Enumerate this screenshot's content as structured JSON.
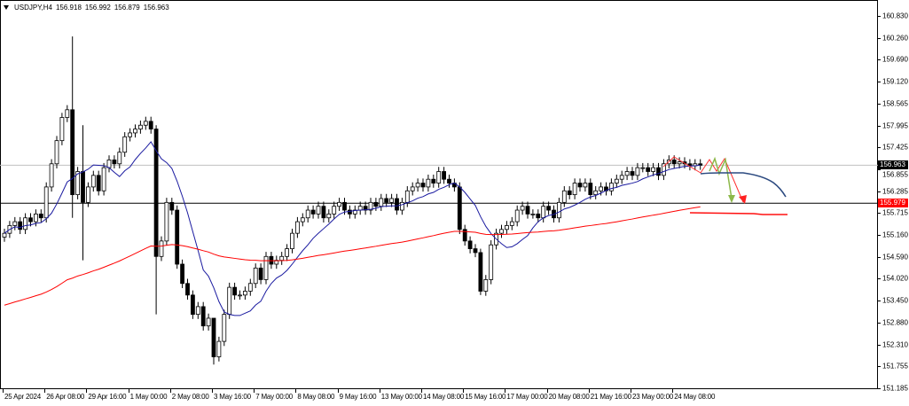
{
  "header": {
    "symbol": "USDJPY,H4",
    "open": "156.918",
    "high": "156.992",
    "low": "156.879",
    "close": "156.963"
  },
  "price_axis": {
    "labels": [
      "160.830",
      "160.260",
      "159.690",
      "159.120",
      "158.565",
      "157.995",
      "157.425",
      "156.855",
      "156.285",
      "155.715",
      "155.160",
      "154.590",
      "154.020",
      "153.450",
      "152.880",
      "152.310",
      "151.755",
      "151.185"
    ],
    "range": [
      151.185,
      160.83
    ]
  },
  "bid_line": {
    "price": 156.963,
    "label": "156.963",
    "color": "#000000"
  },
  "level_line": {
    "price": 155.979,
    "label": "155.979",
    "color": "#ff0000"
  },
  "time_axis": {
    "labels": [
      "25 Apr 2024",
      "26 Apr 08:00",
      "29 Apr 16:00",
      "1 May 00:00",
      "2 May 08:00",
      "3 May 16:00",
      "7 May 00:00",
      "8 May 08:00",
      "9 May 16:00",
      "13 May 00:00",
      "14 May 08:00",
      "15 May 16:00",
      "17 May 00:00",
      "20 May 08:00",
      "21 May 16:00",
      "23 May 00:00",
      "24 May 08:00"
    ],
    "bars_per_label": 8
  },
  "chart_data": {
    "type": "candlestick",
    "timeframe": "H4",
    "first_open": 155.1,
    "closes": [
      155.2,
      155.4,
      155.5,
      155.3,
      155.6,
      155.5,
      155.7,
      155.6,
      156.4,
      157.0,
      157.6,
      158.2,
      158.4,
      156.2,
      156.8,
      156.0,
      156.4,
      156.7,
      156.3,
      156.9,
      157.1,
      157.0,
      157.3,
      157.7,
      157.8,
      157.9,
      158.0,
      158.1,
      157.9,
      154.6,
      155.0,
      156.0,
      155.8,
      154.4,
      153.9,
      153.6,
      153.1,
      153.3,
      152.8,
      153.0,
      152.0,
      152.4,
      153.1,
      153.8,
      153.6,
      153.6,
      153.7,
      153.9,
      154.3,
      154.0,
      154.6,
      154.4,
      154.5,
      154.6,
      154.8,
      155.2,
      155.5,
      155.6,
      155.8,
      155.7,
      155.9,
      155.6,
      155.7,
      155.9,
      156.0,
      155.8,
      155.7,
      155.8,
      155.9,
      155.8,
      156.0,
      155.9,
      156.1,
      156.0,
      156.1,
      155.8,
      156.0,
      156.3,
      156.4,
      156.5,
      156.4,
      156.6,
      156.5,
      156.8,
      156.6,
      156.5,
      156.4,
      155.3,
      155.0,
      154.8,
      154.7,
      153.7,
      154.0,
      154.9,
      155.2,
      155.3,
      155.4,
      155.5,
      155.8,
      155.9,
      155.7,
      155.7,
      155.6,
      155.9,
      155.8,
      155.6,
      156.0,
      156.3,
      156.2,
      156.5,
      156.4,
      156.5,
      156.2,
      156.3,
      156.4,
      156.3,
      156.5,
      156.6,
      156.7,
      156.8,
      156.7,
      156.9,
      156.9,
      156.8,
      156.9,
      156.7,
      157.0,
      157.1,
      157.0,
      157.05,
      157.0,
      156.95,
      157.0,
      156.963
    ],
    "wick_extremes": {
      "13": [
        160.3,
        155.6
      ],
      "15": [
        158.0,
        154.5
      ],
      "29": [
        158.0,
        153.1
      ],
      "40": [
        152.6,
        151.8
      ],
      "91": [
        154.8,
        153.6
      ]
    },
    "ma_fast_period": 10,
    "ma_slow_period": 100,
    "ma_slow_seed": 153.3,
    "colors": {
      "ma_fast": "#1a1aa0",
      "ma_slow": "#ff0000",
      "projection": "#2c4a80",
      "arrow_green": "#8db84a",
      "arrow_red": "#ff2020"
    }
  }
}
